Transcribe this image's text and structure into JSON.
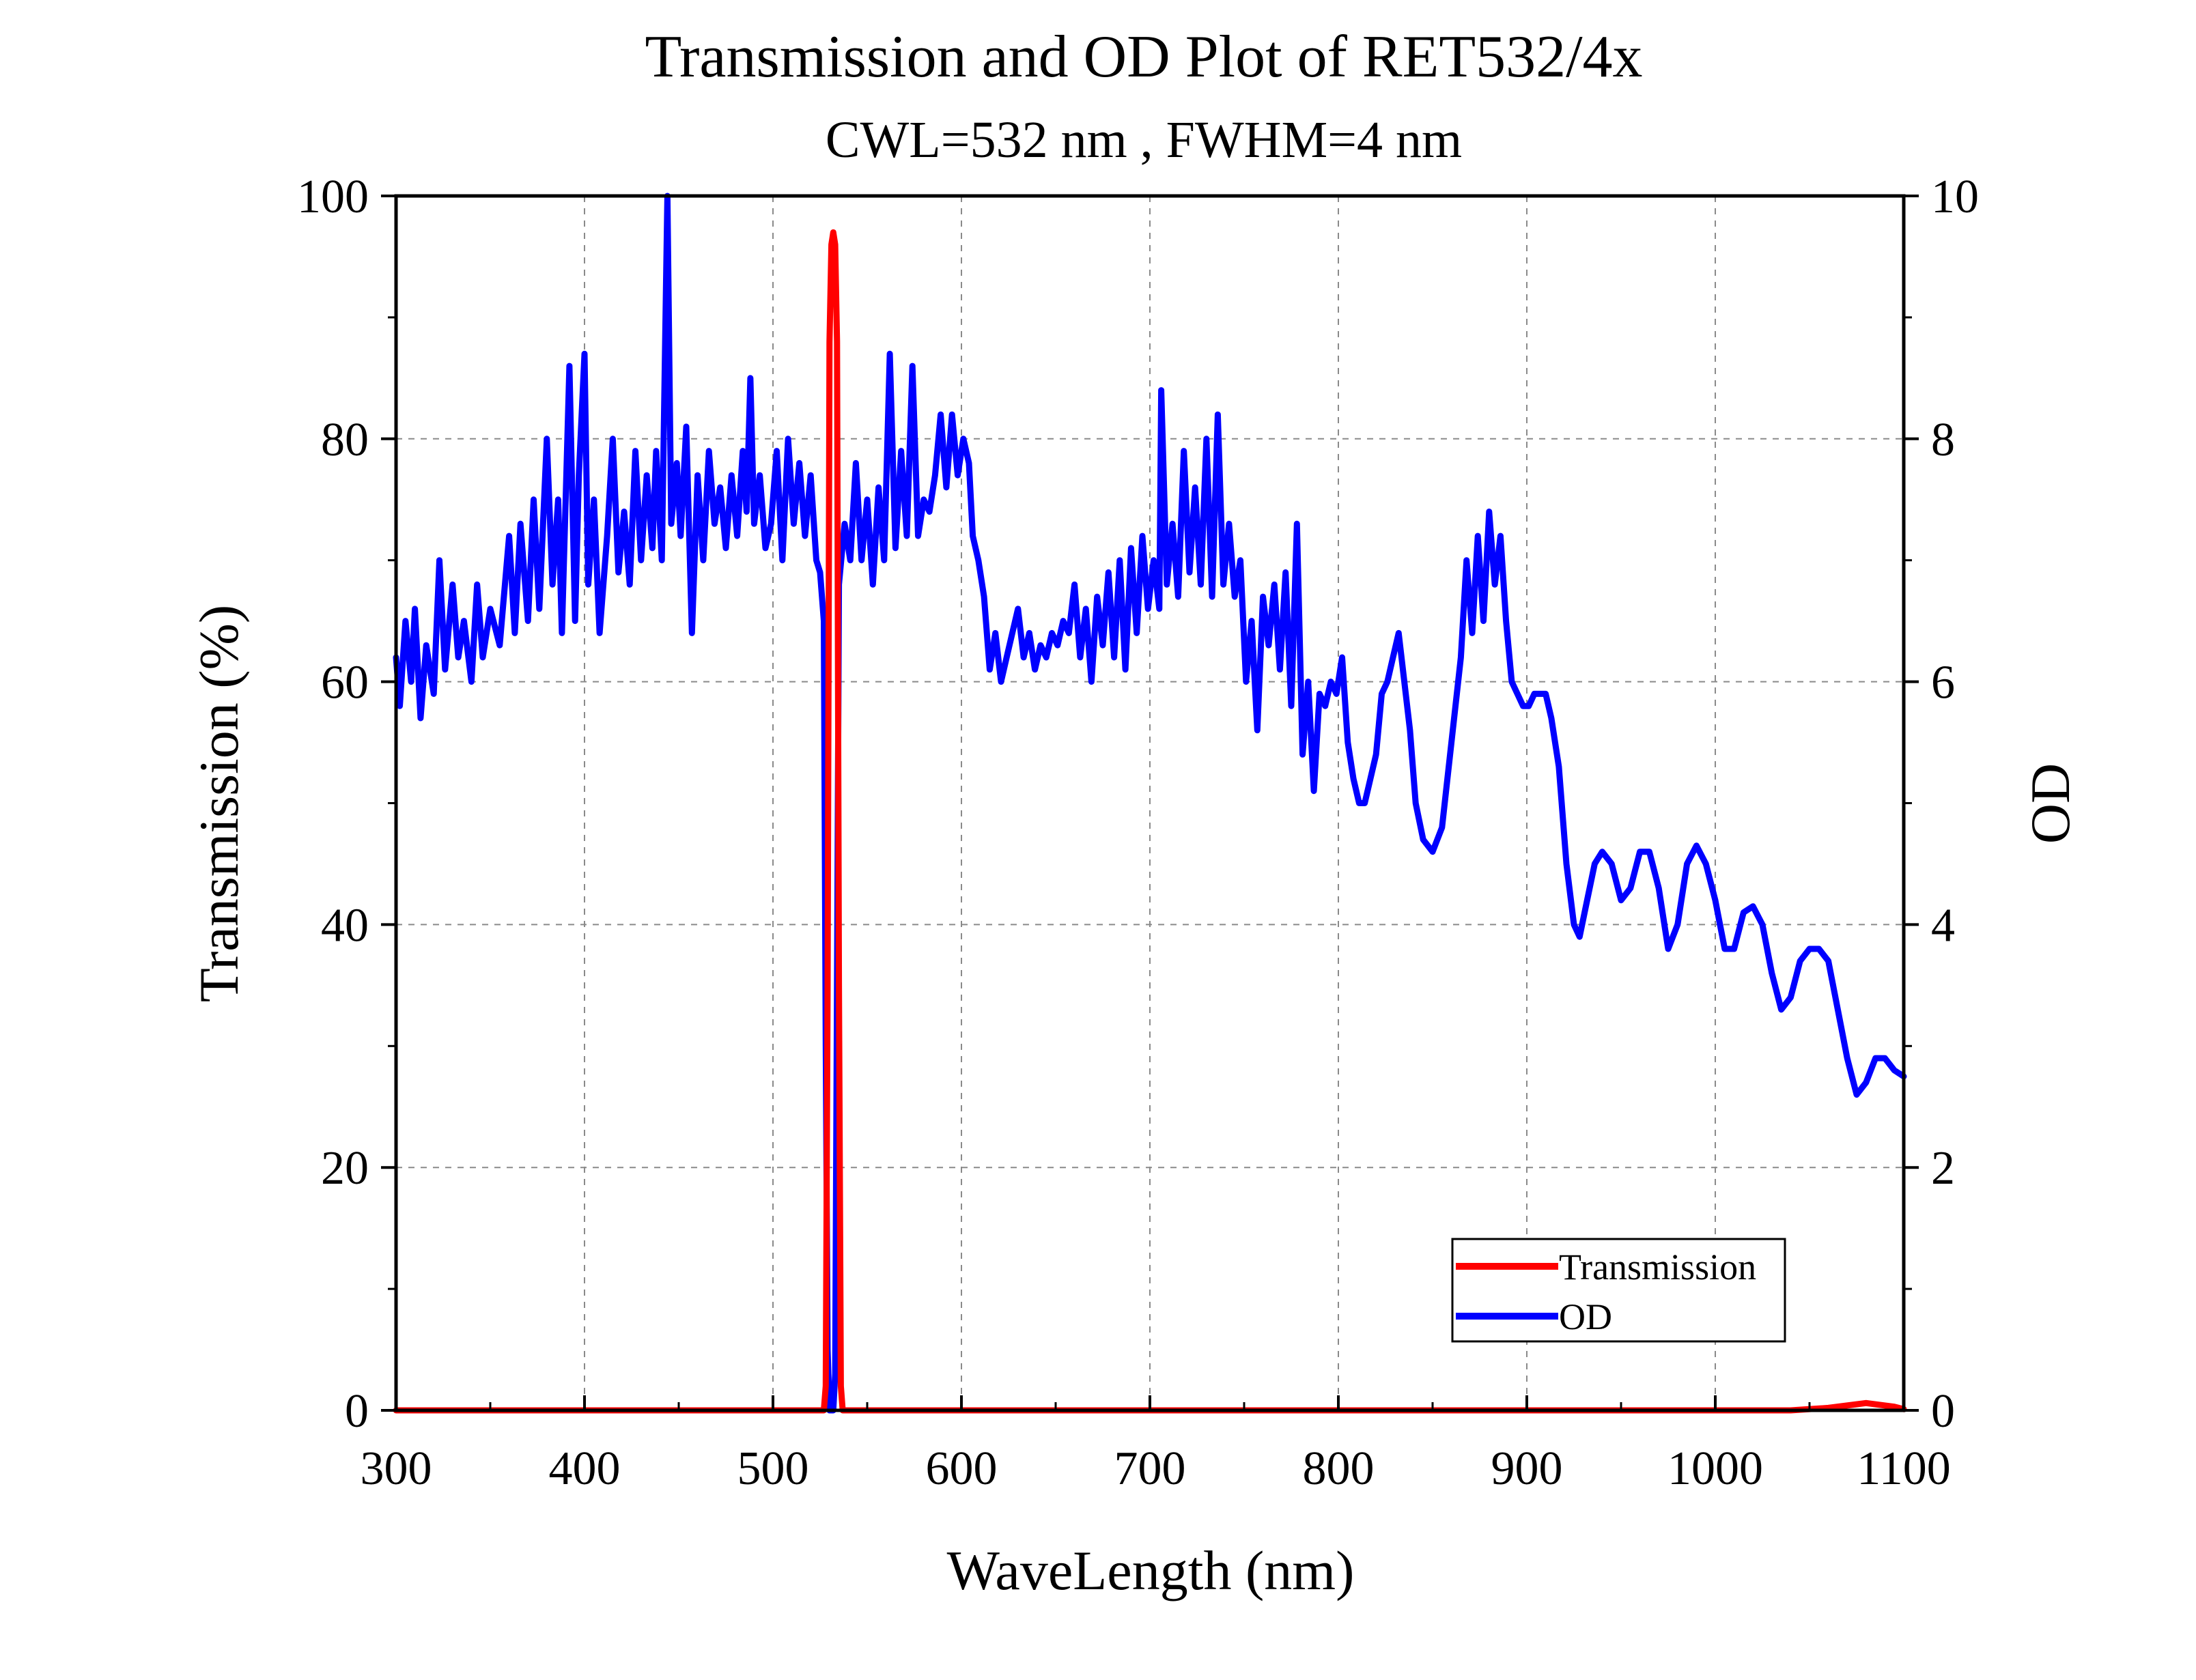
{
  "chart_data": {
    "type": "line",
    "title": "Transmission and OD Plot of RET532/4x",
    "subtitle": "CWL=532 nm , FWHM=4 nm",
    "xlabel": "WaveLength (nm)",
    "ylabel_left": "Transmission (%)",
    "ylabel_right": "OD",
    "xlim": [
      300,
      1100
    ],
    "ylim_left": [
      0,
      100
    ],
    "ylim_right": [
      0,
      10
    ],
    "x_ticks": [
      "300",
      "400",
      "500",
      "600",
      "700",
      "800",
      "900",
      "1000",
      "1100"
    ],
    "y_ticks_left": [
      "0",
      "20",
      "40",
      "60",
      "80",
      "100"
    ],
    "y_ticks_right": [
      "0",
      "2",
      "4",
      "6",
      "8",
      "10"
    ],
    "grid": true,
    "legend_position": "bottom-right",
    "series": [
      {
        "name": "Transmission",
        "axis": "left",
        "color": "#ff0000",
        "points": [
          [
            300,
            0
          ],
          [
            527,
            0
          ],
          [
            528,
            2
          ],
          [
            529,
            35
          ],
          [
            530,
            88
          ],
          [
            531,
            96
          ],
          [
            532,
            97
          ],
          [
            533,
            96
          ],
          [
            534,
            88
          ],
          [
            535,
            35
          ],
          [
            536,
            2
          ],
          [
            537,
            0
          ],
          [
            1040,
            0
          ],
          [
            1060,
            0.2
          ],
          [
            1080,
            0.6
          ],
          [
            1095,
            0.3
          ],
          [
            1100,
            0.1
          ]
        ]
      },
      {
        "name": "OD",
        "axis": "right",
        "color": "#0000ff",
        "points": [
          [
            300,
            6.2
          ],
          [
            302,
            5.8
          ],
          [
            305,
            6.5
          ],
          [
            308,
            6.0
          ],
          [
            310,
            6.6
          ],
          [
            313,
            5.7
          ],
          [
            316,
            6.3
          ],
          [
            320,
            5.9
          ],
          [
            323,
            7.0
          ],
          [
            326,
            6.1
          ],
          [
            330,
            6.8
          ],
          [
            333,
            6.2
          ],
          [
            336,
            6.5
          ],
          [
            340,
            6.0
          ],
          [
            343,
            6.8
          ],
          [
            346,
            6.2
          ],
          [
            350,
            6.6
          ],
          [
            355,
            6.3
          ],
          [
            360,
            7.2
          ],
          [
            363,
            6.4
          ],
          [
            366,
            7.3
          ],
          [
            370,
            6.5
          ],
          [
            373,
            7.5
          ],
          [
            376,
            6.6
          ],
          [
            380,
            8.0
          ],
          [
            383,
            6.8
          ],
          [
            386,
            7.5
          ],
          [
            388,
            6.4
          ],
          [
            392,
            8.6
          ],
          [
            395,
            6.5
          ],
          [
            397,
            7.7
          ],
          [
            400,
            8.7
          ],
          [
            402,
            6.8
          ],
          [
            405,
            7.5
          ],
          [
            408,
            6.4
          ],
          [
            412,
            7.2
          ],
          [
            415,
            8.0
          ],
          [
            418,
            6.9
          ],
          [
            421,
            7.4
          ],
          [
            424,
            6.8
          ],
          [
            427,
            7.9
          ],
          [
            430,
            7.0
          ],
          [
            433,
            7.7
          ],
          [
            436,
            7.1
          ],
          [
            438,
            7.9
          ],
          [
            441,
            7.0
          ],
          [
            444,
            10.0
          ],
          [
            446,
            7.3
          ],
          [
            449,
            7.8
          ],
          [
            451,
            7.2
          ],
          [
            454,
            8.1
          ],
          [
            457,
            6.4
          ],
          [
            460,
            7.7
          ],
          [
            463,
            7.0
          ],
          [
            466,
            7.9
          ],
          [
            469,
            7.3
          ],
          [
            472,
            7.6
          ],
          [
            475,
            7.1
          ],
          [
            478,
            7.7
          ],
          [
            481,
            7.2
          ],
          [
            484,
            7.9
          ],
          [
            486,
            7.4
          ],
          [
            488,
            8.5
          ],
          [
            490,
            7.3
          ],
          [
            493,
            7.7
          ],
          [
            496,
            7.1
          ],
          [
            499,
            7.3
          ],
          [
            502,
            7.9
          ],
          [
            505,
            7.0
          ],
          [
            508,
            8.0
          ],
          [
            511,
            7.3
          ],
          [
            514,
            7.8
          ],
          [
            517,
            7.2
          ],
          [
            520,
            7.7
          ],
          [
            523,
            7.0
          ],
          [
            525,
            6.9
          ],
          [
            527,
            6.5
          ],
          [
            528,
            3.0
          ],
          [
            529,
            0.5
          ],
          [
            530,
            0
          ],
          [
            531,
            0
          ],
          [
            532,
            0
          ],
          [
            533,
            0.3
          ],
          [
            534,
            3.5
          ],
          [
            535,
            6.8
          ],
          [
            538,
            7.3
          ],
          [
            541,
            7.0
          ],
          [
            544,
            7.8
          ],
          [
            547,
            7.0
          ],
          [
            550,
            7.5
          ],
          [
            553,
            6.8
          ],
          [
            556,
            7.6
          ],
          [
            559,
            7.0
          ],
          [
            562,
            8.7
          ],
          [
            565,
            7.1
          ],
          [
            568,
            7.9
          ],
          [
            571,
            7.2
          ],
          [
            574,
            8.6
          ],
          [
            577,
            7.2
          ],
          [
            580,
            7.5
          ],
          [
            583,
            7.4
          ],
          [
            586,
            7.7
          ],
          [
            589,
            8.2
          ],
          [
            592,
            7.6
          ],
          [
            595,
            8.2
          ],
          [
            598,
            7.7
          ],
          [
            601,
            8.0
          ],
          [
            604,
            7.8
          ],
          [
            606,
            7.2
          ],
          [
            609,
            7.0
          ],
          [
            612,
            6.7
          ],
          [
            615,
            6.1
          ],
          [
            618,
            6.4
          ],
          [
            621,
            6.0
          ],
          [
            624,
            6.2
          ],
          [
            627,
            6.4
          ],
          [
            630,
            6.6
          ],
          [
            633,
            6.2
          ],
          [
            636,
            6.4
          ],
          [
            639,
            6.1
          ],
          [
            642,
            6.3
          ],
          [
            645,
            6.2
          ],
          [
            648,
            6.4
          ],
          [
            651,
            6.3
          ],
          [
            654,
            6.5
          ],
          [
            657,
            6.4
          ],
          [
            660,
            6.8
          ],
          [
            663,
            6.2
          ],
          [
            666,
            6.6
          ],
          [
            669,
            6.0
          ],
          [
            672,
            6.7
          ],
          [
            675,
            6.3
          ],
          [
            678,
            6.9
          ],
          [
            681,
            6.2
          ],
          [
            684,
            7.0
          ],
          [
            687,
            6.1
          ],
          [
            690,
            7.1
          ],
          [
            693,
            6.4
          ],
          [
            696,
            7.2
          ],
          [
            699,
            6.6
          ],
          [
            702,
            7.0
          ],
          [
            705,
            6.6
          ],
          [
            706,
            8.4
          ],
          [
            709,
            6.8
          ],
          [
            712,
            7.3
          ],
          [
            715,
            6.7
          ],
          [
            718,
            7.9
          ],
          [
            721,
            6.9
          ],
          [
            724,
            7.6
          ],
          [
            727,
            6.8
          ],
          [
            730,
            8.0
          ],
          [
            733,
            6.7
          ],
          [
            736,
            8.2
          ],
          [
            739,
            6.8
          ],
          [
            742,
            7.3
          ],
          [
            745,
            6.7
          ],
          [
            748,
            7.0
          ],
          [
            751,
            6.0
          ],
          [
            754,
            6.5
          ],
          [
            757,
            5.6
          ],
          [
            760,
            6.7
          ],
          [
            763,
            6.3
          ],
          [
            766,
            6.8
          ],
          [
            769,
            6.1
          ],
          [
            772,
            6.9
          ],
          [
            775,
            5.8
          ],
          [
            778,
            7.3
          ],
          [
            781,
            5.4
          ],
          [
            784,
            6.0
          ],
          [
            787,
            5.1
          ],
          [
            790,
            5.9
          ],
          [
            793,
            5.8
          ],
          [
            796,
            6.0
          ],
          [
            799,
            5.9
          ],
          [
            802,
            6.2
          ],
          [
            805,
            5.5
          ],
          [
            808,
            5.2
          ],
          [
            811,
            5.0
          ],
          [
            814,
            5.0
          ],
          [
            817,
            5.2
          ],
          [
            820,
            5.4
          ],
          [
            823,
            5.9
          ],
          [
            826,
            6.0
          ],
          [
            829,
            6.2
          ],
          [
            832,
            6.4
          ],
          [
            835,
            6.0
          ],
          [
            838,
            5.6
          ],
          [
            841,
            5.0
          ],
          [
            845,
            4.7
          ],
          [
            850,
            4.6
          ],
          [
            855,
            4.8
          ],
          [
            860,
            5.5
          ],
          [
            865,
            6.2
          ],
          [
            868,
            7.0
          ],
          [
            871,
            6.4
          ],
          [
            874,
            7.2
          ],
          [
            877,
            6.5
          ],
          [
            880,
            7.4
          ],
          [
            883,
            6.8
          ],
          [
            886,
            7.2
          ],
          [
            889,
            6.5
          ],
          [
            892,
            6.0
          ],
          [
            895,
            5.9
          ],
          [
            898,
            5.8
          ],
          [
            901,
            5.8
          ],
          [
            904,
            5.9
          ],
          [
            907,
            5.9
          ],
          [
            910,
            5.9
          ],
          [
            913,
            5.7
          ],
          [
            917,
            5.3
          ],
          [
            921,
            4.5
          ],
          [
            925,
            4.0
          ],
          [
            928,
            3.9
          ],
          [
            932,
            4.2
          ],
          [
            936,
            4.5
          ],
          [
            940,
            4.6
          ],
          [
            945,
            4.5
          ],
          [
            950,
            4.2
          ],
          [
            955,
            4.3
          ],
          [
            960,
            4.6
          ],
          [
            965,
            4.6
          ],
          [
            970,
            4.3
          ],
          [
            975,
            3.8
          ],
          [
            980,
            4.0
          ],
          [
            985,
            4.5
          ],
          [
            990,
            4.65
          ],
          [
            995,
            4.5
          ],
          [
            1000,
            4.2
          ],
          [
            1005,
            3.8
          ],
          [
            1010,
            3.8
          ],
          [
            1015,
            4.1
          ],
          [
            1020,
            4.15
          ],
          [
            1025,
            4.0
          ],
          [
            1030,
            3.6
          ],
          [
            1035,
            3.3
          ],
          [
            1040,
            3.4
          ],
          [
            1045,
            3.7
          ],
          [
            1050,
            3.8
          ],
          [
            1055,
            3.8
          ],
          [
            1060,
            3.7
          ],
          [
            1065,
            3.3
          ],
          [
            1070,
            2.9
          ],
          [
            1075,
            2.6
          ],
          [
            1080,
            2.7
          ],
          [
            1085,
            2.9
          ],
          [
            1090,
            2.9
          ],
          [
            1095,
            2.8
          ],
          [
            1100,
            2.75
          ]
        ]
      }
    ]
  }
}
